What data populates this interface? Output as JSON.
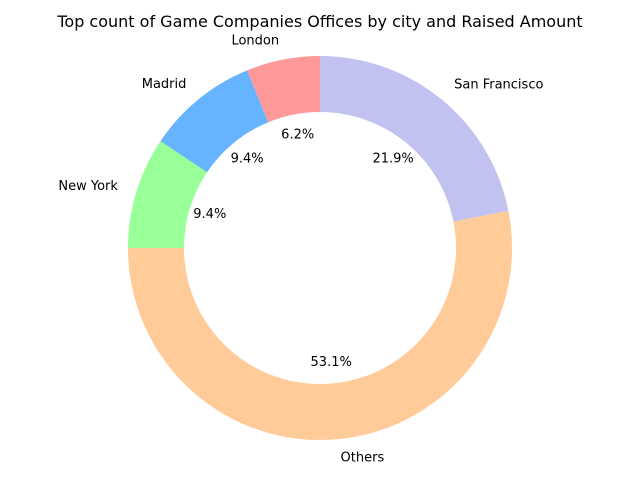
{
  "chart_data": {
    "type": "pie",
    "donut": true,
    "title": "Top count of Game Companies Offices by city and Raised Amount",
    "start_angle": 90,
    "direction": "clockwise",
    "slices": [
      {
        "label": "San Francisco",
        "value": 21.9,
        "pct_label": "21.9%",
        "color": "#c2c2f0"
      },
      {
        "label": "Others",
        "value": 53.1,
        "pct_label": "53.1%",
        "color": "#ffcc99"
      },
      {
        "label": "New York",
        "value": 9.4,
        "pct_label": "9.4%",
        "color": "#99ff99"
      },
      {
        "label": "Madrid",
        "value": 9.4,
        "pct_label": "9.4%",
        "color": "#66b3ff"
      },
      {
        "label": "London",
        "value": 6.2,
        "pct_label": "6.2%",
        "color": "#ff9999"
      }
    ]
  }
}
